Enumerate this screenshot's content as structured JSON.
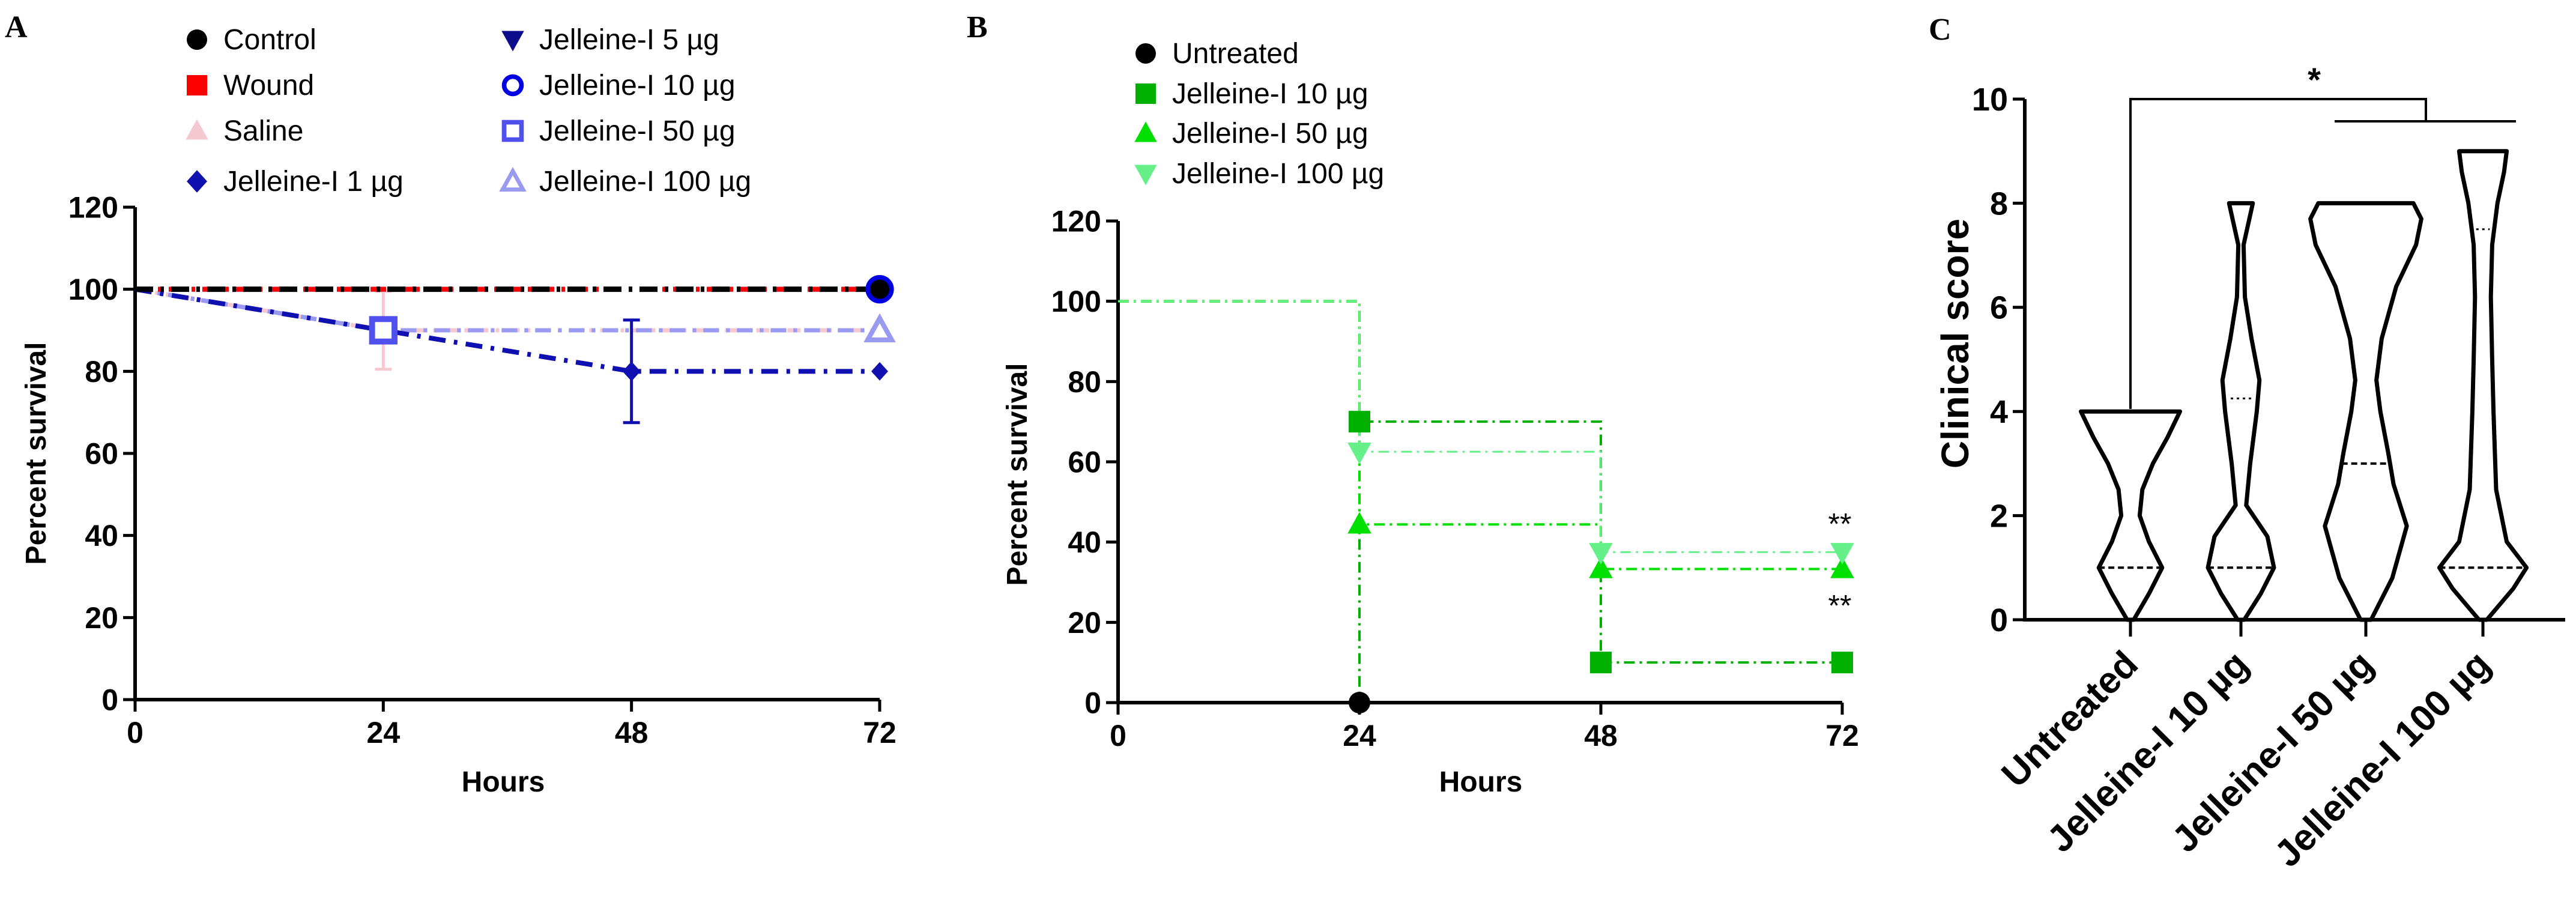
{
  "colors": {
    "axis": "#000000",
    "control": "#000000",
    "wound": "#ff0000",
    "saline": "#f4c9cf",
    "j1": "#1010b0",
    "j5": "#0d0d8c",
    "j10": "#0000e0",
    "j50": "#5050ee",
    "j100": "#9a9af2",
    "untreated": "#000000",
    "b10": "#00b000",
    "b50": "#00e000",
    "b100": "#66f08a"
  },
  "chart_data": [
    {
      "panel": "A",
      "type": "line",
      "panel_label": "A",
      "xlabel": "Hours",
      "ylabel": "Percent survival",
      "xlim": [
        0,
        72
      ],
      "ylim": [
        0,
        120
      ],
      "x_ticks": [
        "0",
        "24",
        "48",
        "72"
      ],
      "y_ticks": [
        "0",
        "20",
        "40",
        "60",
        "80",
        "100",
        "120"
      ],
      "legend": {
        "left": [
          "Control",
          "Wound",
          "Saline",
          "Jelleine-I 1 µg"
        ],
        "right": [
          "Jelleine-I 5 µg",
          "Jelleine-I 10 µg",
          "Jelleine-I 50 µg",
          "Jelleine-I 100 µg"
        ]
      },
      "series": [
        {
          "name": "Control",
          "x": [
            0,
            72
          ],
          "values": [
            100,
            100
          ],
          "marker": "circle",
          "color_key": "control"
        },
        {
          "name": "Wound",
          "x": [
            0,
            72
          ],
          "values": [
            100,
            100
          ],
          "marker": "square",
          "color_key": "wound"
        },
        {
          "name": "Saline",
          "x": [
            0,
            24,
            72
          ],
          "values": [
            100,
            90,
            90
          ],
          "marker": "triangle",
          "color_key": "saline",
          "error_at": [
            {
              "x": 24,
              "low": 80.5,
              "high": 99.5
            }
          ]
        },
        {
          "name": "Jelleine-I 1 µg",
          "x": [
            0,
            24,
            48,
            72
          ],
          "values": [
            100,
            90,
            80,
            80
          ],
          "marker": "diamond",
          "color_key": "j1",
          "error_at": [
            {
              "x": 48,
              "low": 67.5,
              "high": 92.5
            }
          ]
        },
        {
          "name": "Jelleine-I 5 µg",
          "x": [
            0,
            72
          ],
          "values": [
            100,
            100
          ],
          "marker": "tri-down",
          "color_key": "j5"
        },
        {
          "name": "Jelleine-I 10 µg",
          "x": [
            0,
            72
          ],
          "values": [
            100,
            100
          ],
          "marker": "ring",
          "color_key": "j10"
        },
        {
          "name": "Jelleine-I 50 µg",
          "x": [
            0,
            24,
            72
          ],
          "values": [
            100,
            90,
            90
          ],
          "marker": "open-square",
          "color_key": "j50"
        },
        {
          "name": "Jelleine-I 100 µg",
          "x": [
            0,
            24,
            72
          ],
          "values": [
            100,
            90,
            90
          ],
          "marker": "open-triangle",
          "color_key": "j100"
        }
      ]
    },
    {
      "panel": "B",
      "type": "line",
      "panel_label": "B",
      "xlabel": "Hours",
      "ylabel": "Percent survival",
      "xlim": [
        0,
        72
      ],
      "ylim": [
        0,
        120
      ],
      "x_ticks": [
        "0",
        "24",
        "48",
        "72"
      ],
      "y_ticks": [
        "0",
        "20",
        "40",
        "60",
        "80",
        "100",
        "120"
      ],
      "legend": [
        "Untreated",
        "Jelleine-I 10 µg",
        "Jelleine-I 50 µg",
        "Jelleine-I 100 µg"
      ],
      "series": [
        {
          "name": "Untreated",
          "x": [
            0,
            24
          ],
          "values": [
            100,
            0
          ],
          "step": true,
          "marker": "circle",
          "marker_at": [
            [
              24,
              0
            ]
          ],
          "color_key": "untreated"
        },
        {
          "name": "Jelleine-I 10 µg",
          "x": [
            0,
            24,
            48,
            72
          ],
          "values": [
            100,
            70,
            10,
            10
          ],
          "step": true,
          "marker": "square",
          "marker_at": [
            [
              24,
              70
            ],
            [
              48,
              10
            ],
            [
              72,
              10
            ]
          ],
          "color_key": "b10"
        },
        {
          "name": "Jelleine-I 50 µg",
          "x": [
            0,
            24,
            48,
            72
          ],
          "values": [
            100,
            44.4,
            33.3,
            33.3
          ],
          "step": true,
          "marker": "triangle",
          "marker_at": [
            [
              24,
              44.4
            ],
            [
              48,
              33.3
            ],
            [
              72,
              33.3
            ]
          ],
          "color_key": "b50"
        },
        {
          "name": "Jelleine-I 100 µg",
          "x": [
            0,
            24,
            48,
            72
          ],
          "values": [
            100,
            62.5,
            37.5,
            37.5
          ],
          "step": true,
          "marker": "tri-down",
          "marker_at": [
            [
              24,
              62.5
            ],
            [
              48,
              37.5
            ],
            [
              72,
              37.5
            ]
          ],
          "color_key": "b100"
        }
      ],
      "annotations": [
        {
          "text": "**",
          "x": 72,
          "y": 37.5,
          "place": "above"
        },
        {
          "text": "**",
          "x": 72,
          "y": 33.3,
          "place": "below"
        }
      ]
    },
    {
      "panel": "C",
      "type": "violin",
      "panel_label": "C",
      "ylabel": "Clinical score",
      "ylim": [
        0,
        10
      ],
      "y_ticks": [
        "0",
        "2",
        "4",
        "6",
        "8",
        "10"
      ],
      "categories": [
        "Untreated",
        "Jelleine-I 10 µg",
        "Jelleine-I 50 µg",
        "Jelleine-I 100 µg"
      ],
      "violins": [
        {
          "name": "Untreated",
          "min": 0,
          "max": 4,
          "median": 1,
          "q3": 1,
          "profile": [
            [
              0,
              0.05
            ],
            [
              0.5,
              0.28
            ],
            [
              1,
              0.48
            ],
            [
              1.5,
              0.28
            ],
            [
              2,
              0.14
            ],
            [
              2.5,
              0.18
            ],
            [
              3,
              0.34
            ],
            [
              3.5,
              0.56
            ],
            [
              4,
              0.75
            ]
          ]
        },
        {
          "name": "Jelleine-I 10 µg",
          "min": 0,
          "max": 8,
          "median": 1,
          "q3": 4.25,
          "profile": [
            [
              0,
              0.05
            ],
            [
              0.5,
              0.3
            ],
            [
              1,
              0.5
            ],
            [
              1.6,
              0.4
            ],
            [
              2.2,
              0.08
            ],
            [
              3,
              0.14
            ],
            [
              4,
              0.24
            ],
            [
              4.6,
              0.28
            ],
            [
              5.4,
              0.16
            ],
            [
              6.2,
              0.06
            ],
            [
              7.2,
              0.04
            ],
            [
              8,
              0.18
            ]
          ]
        },
        {
          "name": "Jelleine-I 50 µg",
          "min": 0,
          "max": 8,
          "median": 3,
          "q3": 8,
          "profile": [
            [
              0,
              0.08
            ],
            [
              0.8,
              0.4
            ],
            [
              1.8,
              0.62
            ],
            [
              2.6,
              0.42
            ],
            [
              3.2,
              0.34
            ],
            [
              4,
              0.22
            ],
            [
              4.6,
              0.16
            ],
            [
              5.4,
              0.24
            ],
            [
              6.4,
              0.46
            ],
            [
              7.2,
              0.76
            ],
            [
              7.7,
              0.84
            ],
            [
              8,
              0.72
            ]
          ]
        },
        {
          "name": "Jelleine-I 100 µg",
          "min": 0,
          "max": 9,
          "median": 1,
          "q3": 7.5,
          "profile": [
            [
              0,
              0.06
            ],
            [
              0.6,
              0.46
            ],
            [
              1,
              0.66
            ],
            [
              1.5,
              0.36
            ],
            [
              2.5,
              0.2
            ],
            [
              4,
              0.16
            ],
            [
              5,
              0.14
            ],
            [
              6.2,
              0.12
            ],
            [
              7.2,
              0.14
            ],
            [
              8,
              0.22
            ],
            [
              8.6,
              0.32
            ],
            [
              9,
              0.36
            ]
          ]
        }
      ],
      "significance": {
        "text": "*",
        "from": "Untreated",
        "to": [
          "Jelleine-I 50 µg",
          "Jelleine-I 100 µg"
        ]
      }
    }
  ]
}
